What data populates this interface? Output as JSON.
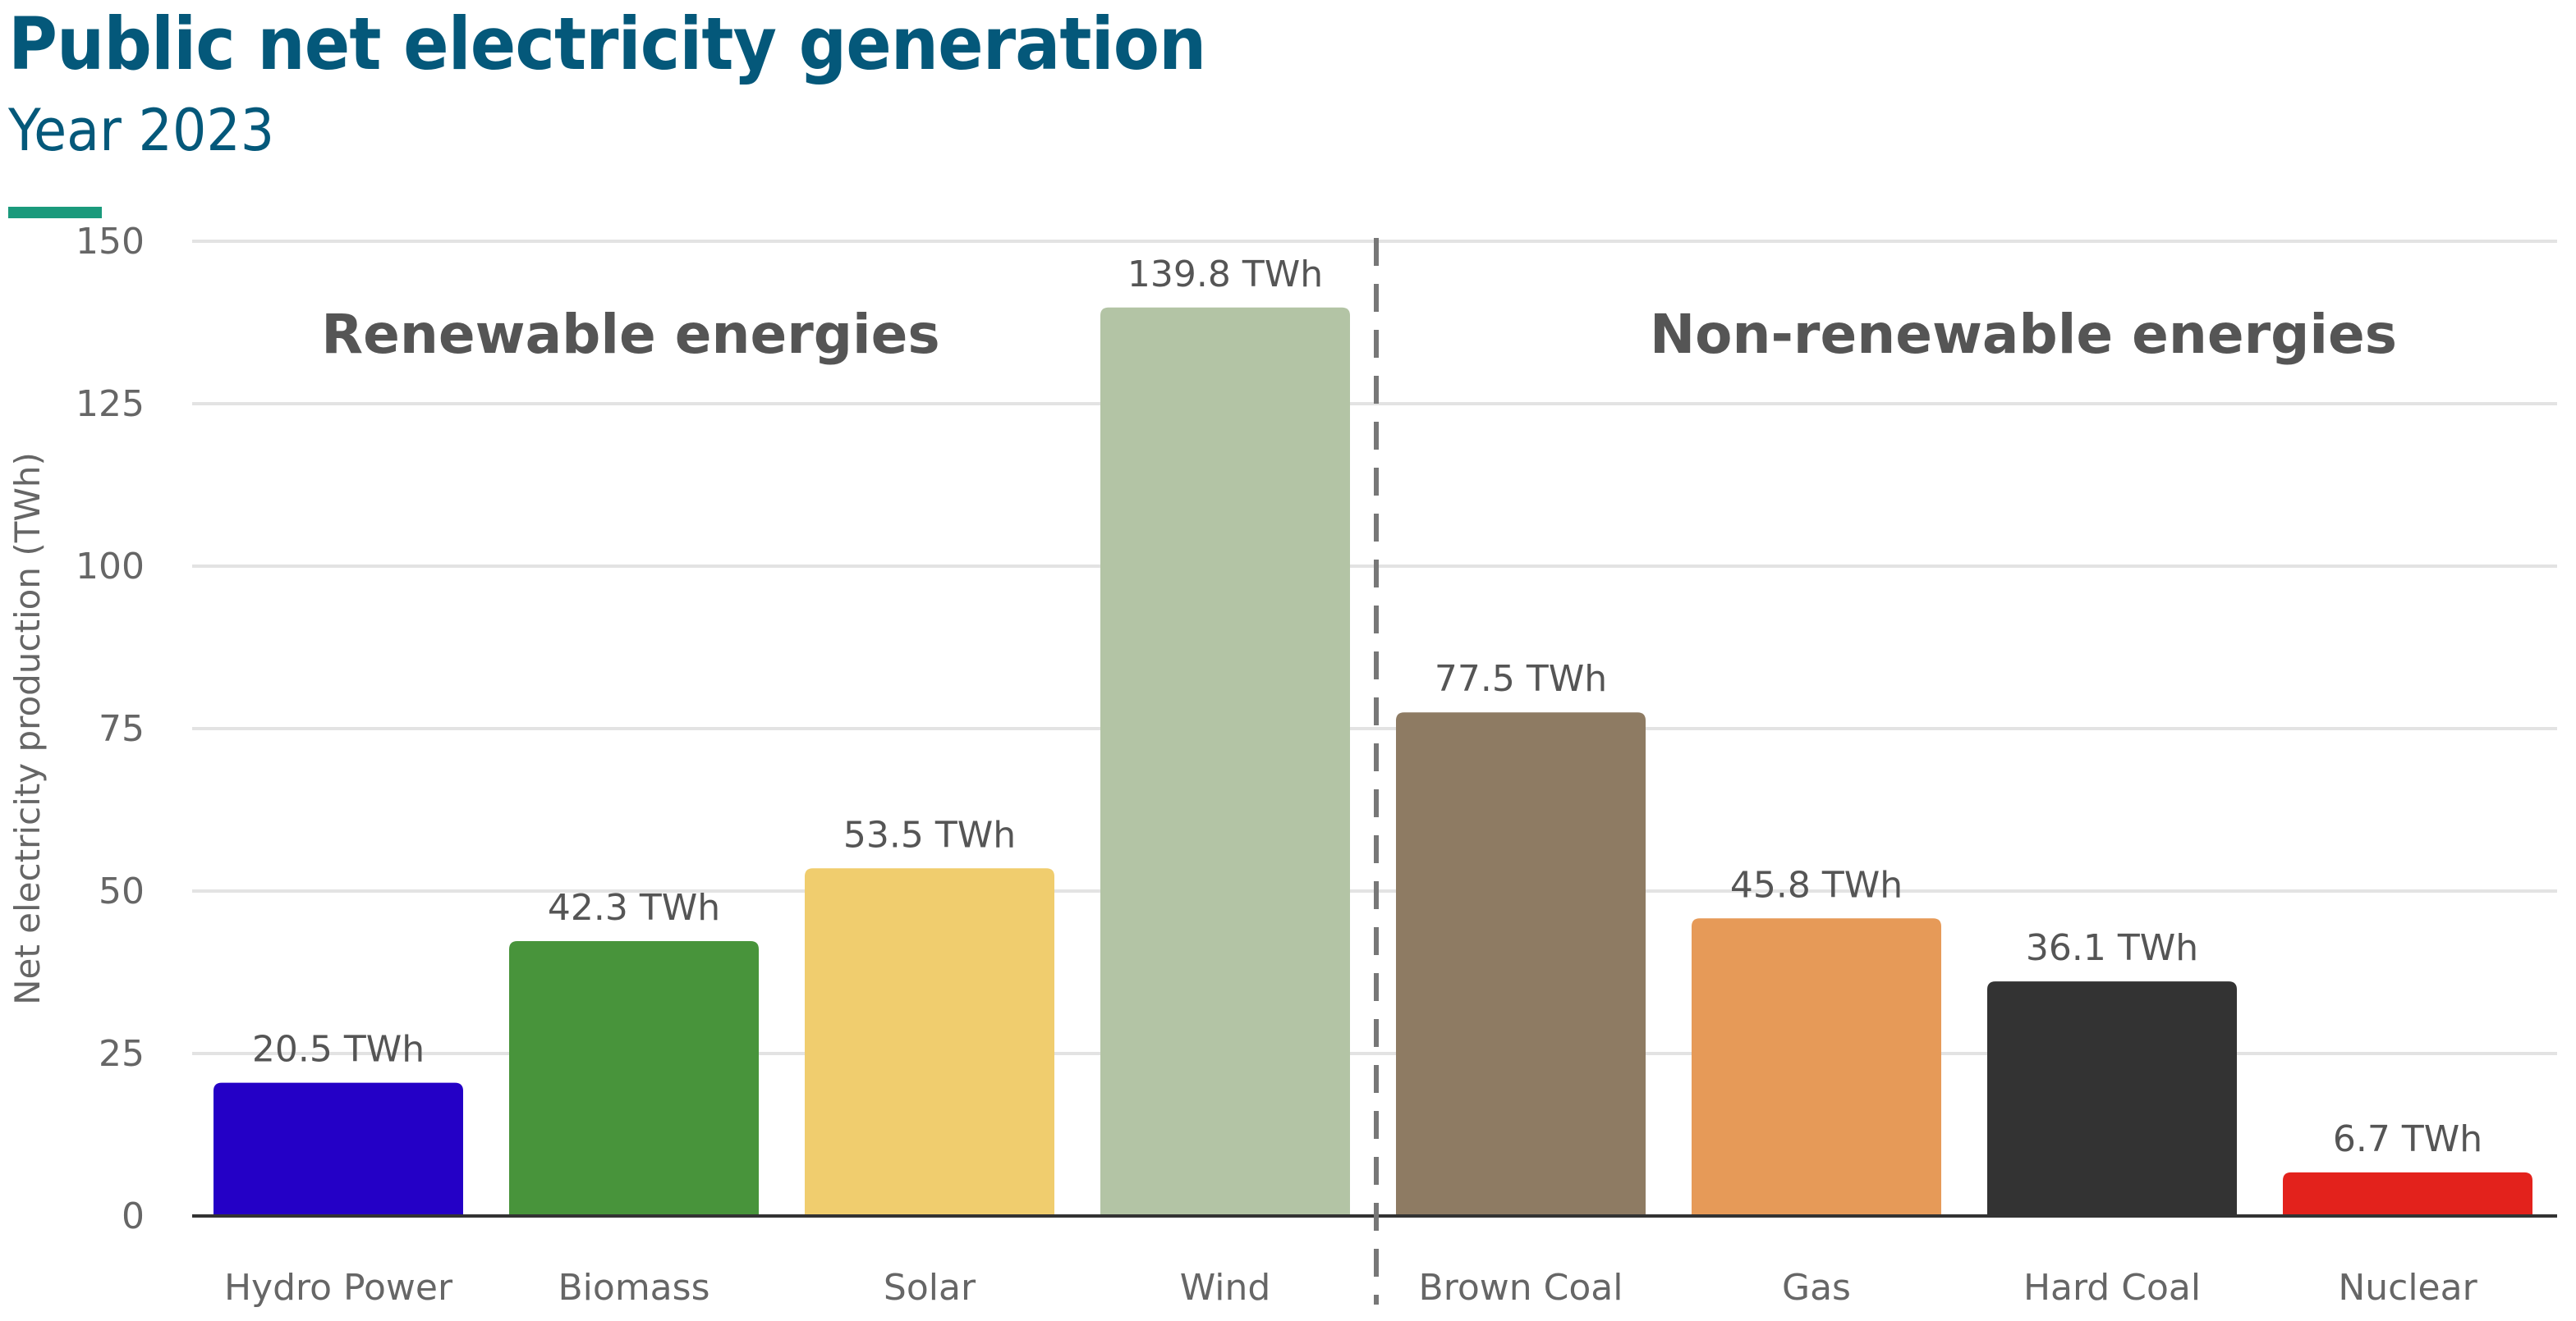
{
  "title": "Public net electricity generation",
  "subtitle": "Year 2023",
  "accent_color": "#1a9a7c",
  "chart_data": {
    "type": "bar",
    "title": "Public net electricity generation",
    "subtitle": "Year 2023",
    "xlabel": "",
    "ylabel": "Net electricity production (TWh)",
    "ylim": [
      0,
      150
    ],
    "yticks": [
      0,
      25,
      50,
      75,
      100,
      125,
      150
    ],
    "grid": true,
    "categories": [
      "Hydro Power",
      "Biomass",
      "Solar",
      "Wind",
      "Brown Coal",
      "Gas",
      "Hard Coal",
      "Nuclear"
    ],
    "values": [
      20.5,
      42.3,
      53.5,
      139.8,
      77.5,
      45.8,
      36.1,
      6.7
    ],
    "data_labels": [
      "20.5 TWh",
      "42.3 TWh",
      "53.5 TWh",
      "139.8 TWh",
      "77.5 TWh",
      "45.8 TWh",
      "36.1 TWh",
      "6.7 TWh"
    ],
    "colors": [
      "#2400c6",
      "#48943b",
      "#f0cd6e",
      "#b3c4a5",
      "#8e7b63",
      "#e69a58",
      "#333333",
      "#e3221c"
    ],
    "groups": [
      {
        "label": "Renewable energies",
        "categories": [
          "Hydro Power",
          "Biomass",
          "Solar",
          "Wind"
        ]
      },
      {
        "label": "Non-renewable energies",
        "categories": [
          "Brown Coal",
          "Gas",
          "Hard Coal",
          "Nuclear"
        ]
      }
    ]
  }
}
